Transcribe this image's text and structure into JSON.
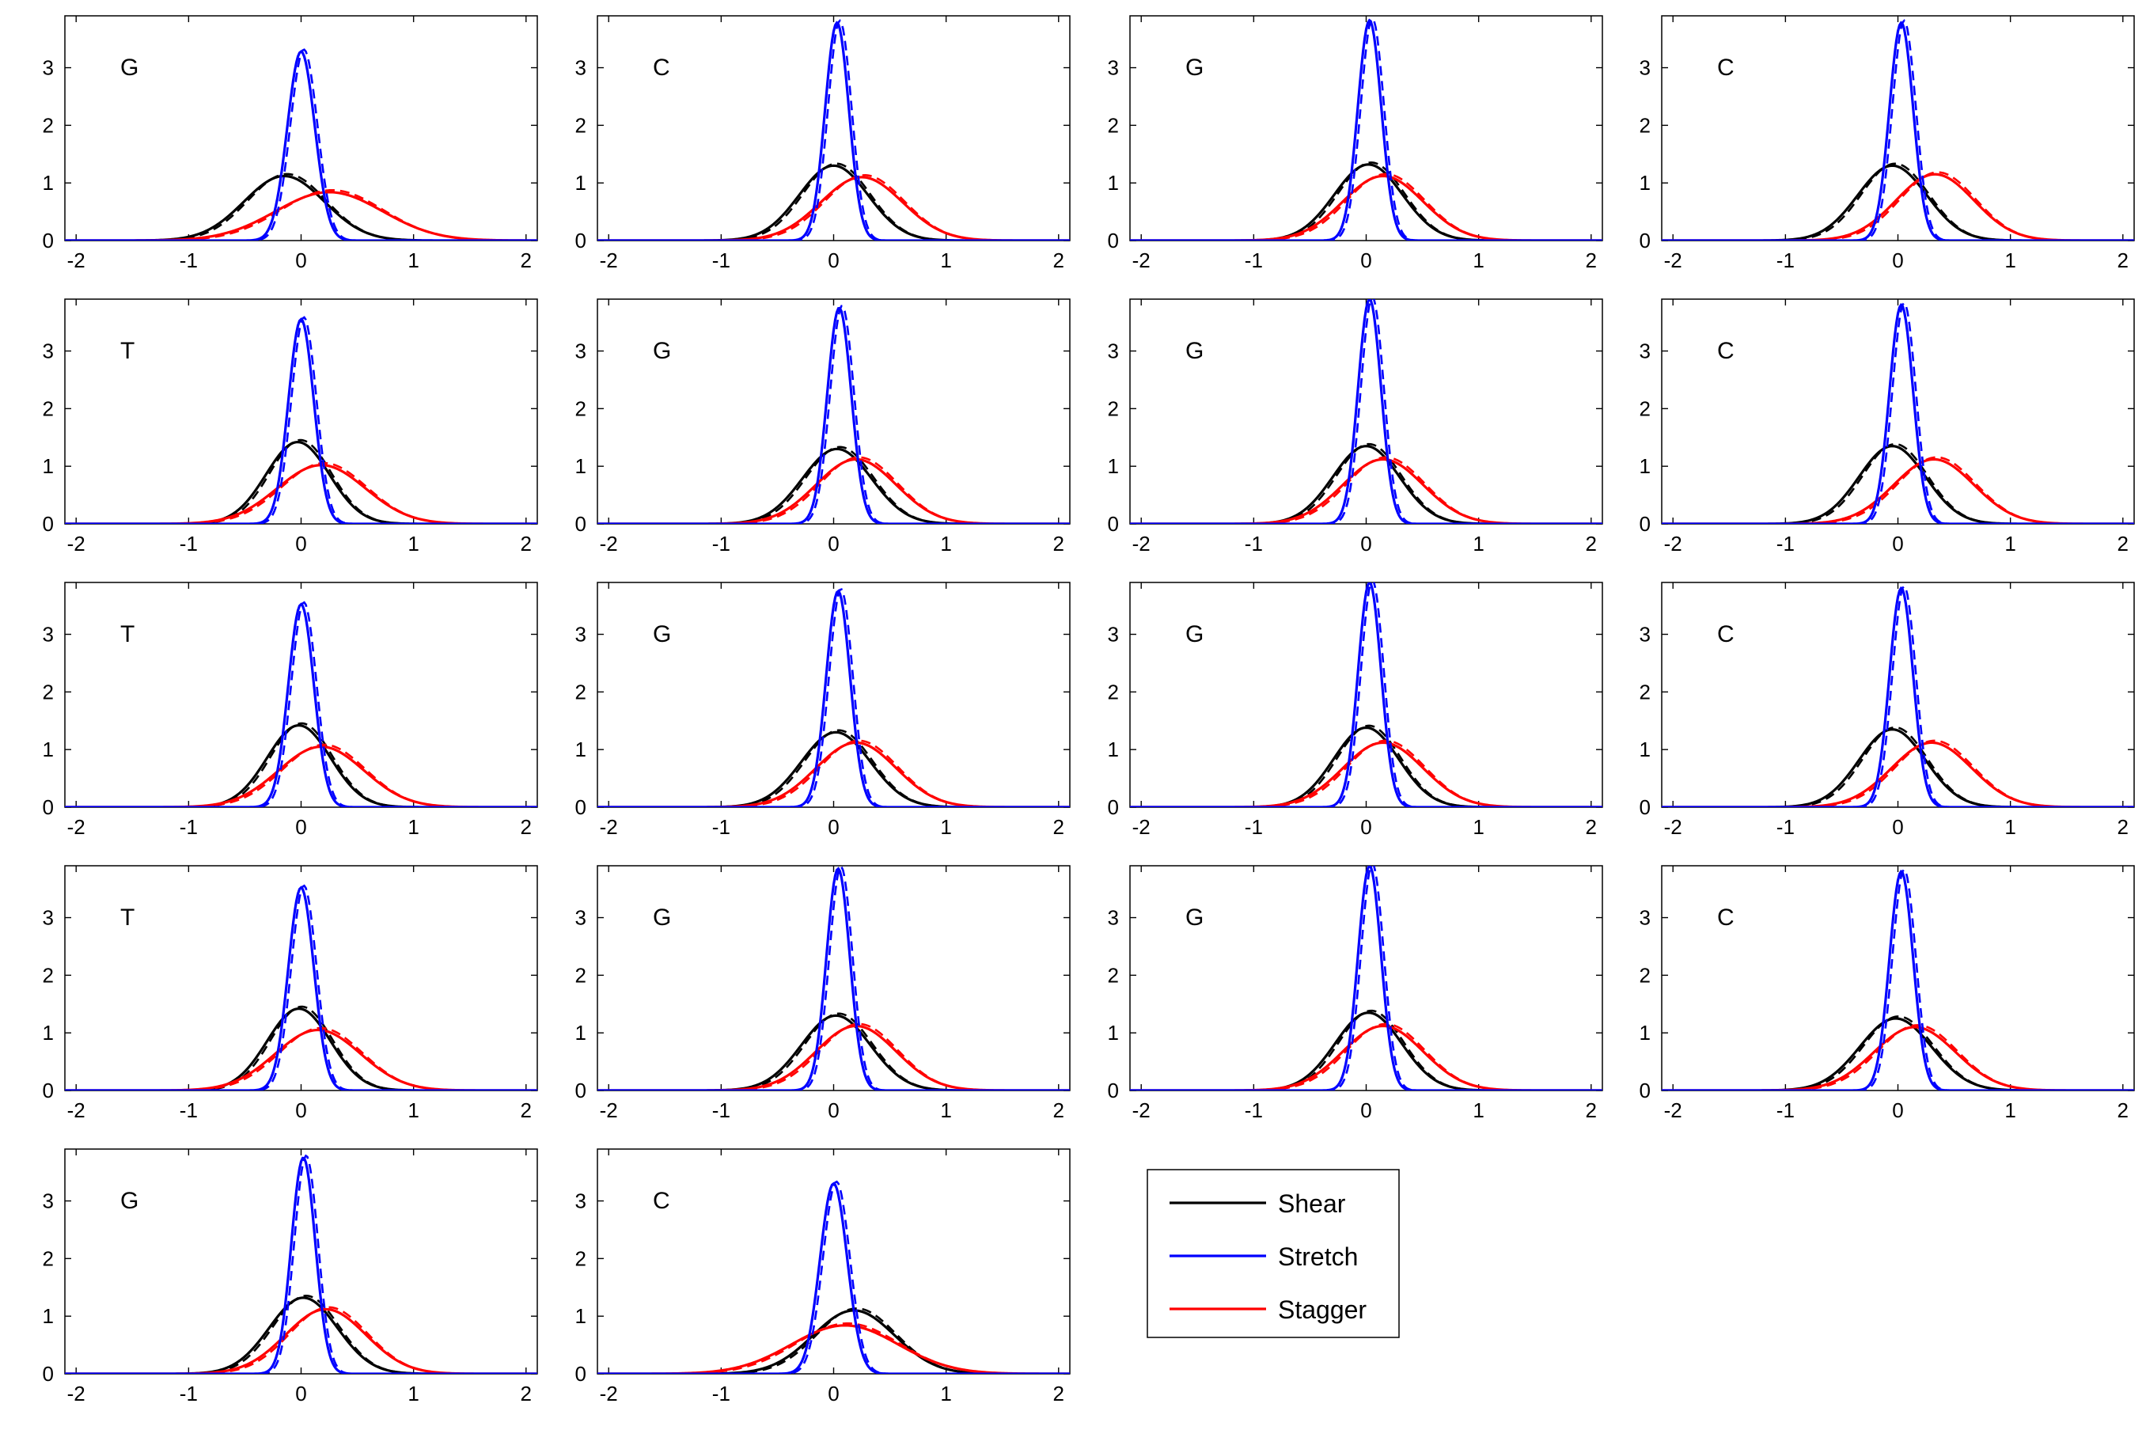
{
  "chart_data": {
    "type": "line",
    "layout": {
      "rows": 5,
      "cols": 4
    },
    "xlim": [
      -2.1,
      2.1
    ],
    "ylim": [
      0,
      3.9
    ],
    "xticks": [
      -2,
      -1,
      0,
      1,
      2
    ],
    "yticks": [
      0,
      1,
      2,
      3
    ],
    "legend": {
      "placement": "row-5-col-3",
      "entries": [
        {
          "label": "Shear",
          "color": "#000000"
        },
        {
          "label": "Stretch",
          "color": "#0000ff"
        },
        {
          "label": "Stagger",
          "color": "#ff0000"
        }
      ]
    },
    "series_styles": {
      "primary": "solid",
      "secondary": "dashed"
    },
    "panels": [
      {
        "label": "G",
        "row": 0,
        "col": 0,
        "curves": {
          "Shear": {
            "mu": -0.15,
            "peak": 1.12
          },
          "Stretch": {
            "mu": 0.0,
            "peak": 3.28
          },
          "Stagger": {
            "mu": 0.25,
            "peak": 0.84
          }
        }
      },
      {
        "label": "C",
        "row": 0,
        "col": 1,
        "curves": {
          "Shear": {
            "mu": 0.0,
            "peak": 1.3
          },
          "Stretch": {
            "mu": 0.03,
            "peak": 3.78
          },
          "Stagger": {
            "mu": 0.25,
            "peak": 1.1
          }
        }
      },
      {
        "label": "G",
        "row": 0,
        "col": 2,
        "curves": {
          "Shear": {
            "mu": 0.02,
            "peak": 1.32
          },
          "Stretch": {
            "mu": 0.03,
            "peak": 3.82
          },
          "Stagger": {
            "mu": 0.15,
            "peak": 1.12
          }
        }
      },
      {
        "label": "C",
        "row": 0,
        "col": 3,
        "curves": {
          "Shear": {
            "mu": -0.05,
            "peak": 1.3
          },
          "Stretch": {
            "mu": 0.03,
            "peak": 3.78
          },
          "Stagger": {
            "mu": 0.33,
            "peak": 1.15
          }
        }
      },
      {
        "label": "T",
        "row": 1,
        "col": 0,
        "curves": {
          "Shear": {
            "mu": -0.03,
            "peak": 1.42
          },
          "Stretch": {
            "mu": 0.0,
            "peak": 3.55
          },
          "Stagger": {
            "mu": 0.18,
            "peak": 1.02
          }
        }
      },
      {
        "label": "G",
        "row": 1,
        "col": 1,
        "curves": {
          "Shear": {
            "mu": 0.03,
            "peak": 1.3
          },
          "Stretch": {
            "mu": 0.05,
            "peak": 3.75
          },
          "Stagger": {
            "mu": 0.2,
            "peak": 1.12
          }
        }
      },
      {
        "label": "G",
        "row": 1,
        "col": 2,
        "curves": {
          "Shear": {
            "mu": 0.0,
            "peak": 1.35
          },
          "Stretch": {
            "mu": 0.03,
            "peak": 3.9
          },
          "Stagger": {
            "mu": 0.15,
            "peak": 1.12
          }
        }
      },
      {
        "label": "C",
        "row": 1,
        "col": 3,
        "curves": {
          "Shear": {
            "mu": -0.05,
            "peak": 1.35
          },
          "Stretch": {
            "mu": 0.03,
            "peak": 3.8
          },
          "Stagger": {
            "mu": 0.32,
            "peak": 1.12
          }
        }
      },
      {
        "label": "T",
        "row": 2,
        "col": 0,
        "curves": {
          "Shear": {
            "mu": -0.02,
            "peak": 1.42
          },
          "Stretch": {
            "mu": 0.0,
            "peak": 3.52
          },
          "Stagger": {
            "mu": 0.18,
            "peak": 1.05
          }
        }
      },
      {
        "label": "G",
        "row": 2,
        "col": 1,
        "curves": {
          "Shear": {
            "mu": 0.02,
            "peak": 1.3
          },
          "Stretch": {
            "mu": 0.04,
            "peak": 3.75
          },
          "Stagger": {
            "mu": 0.2,
            "peak": 1.12
          }
        }
      },
      {
        "label": "G",
        "row": 2,
        "col": 2,
        "curves": {
          "Shear": {
            "mu": 0.0,
            "peak": 1.38
          },
          "Stretch": {
            "mu": 0.03,
            "peak": 3.9
          },
          "Stagger": {
            "mu": 0.15,
            "peak": 1.12
          }
        }
      },
      {
        "label": "C",
        "row": 2,
        "col": 3,
        "curves": {
          "Shear": {
            "mu": -0.05,
            "peak": 1.35
          },
          "Stretch": {
            "mu": 0.03,
            "peak": 3.8
          },
          "Stagger": {
            "mu": 0.3,
            "peak": 1.12
          }
        }
      },
      {
        "label": "T",
        "row": 3,
        "col": 0,
        "curves": {
          "Shear": {
            "mu": -0.02,
            "peak": 1.42
          },
          "Stretch": {
            "mu": 0.0,
            "peak": 3.52
          },
          "Stagger": {
            "mu": 0.15,
            "peak": 1.05
          }
        }
      },
      {
        "label": "G",
        "row": 3,
        "col": 1,
        "curves": {
          "Shear": {
            "mu": 0.02,
            "peak": 1.3
          },
          "Stretch": {
            "mu": 0.04,
            "peak": 3.85
          },
          "Stagger": {
            "mu": 0.2,
            "peak": 1.12
          }
        }
      },
      {
        "label": "G",
        "row": 3,
        "col": 2,
        "curves": {
          "Shear": {
            "mu": 0.02,
            "peak": 1.35
          },
          "Stretch": {
            "mu": 0.03,
            "peak": 3.9
          },
          "Stagger": {
            "mu": 0.15,
            "peak": 1.12
          }
        }
      },
      {
        "label": "C",
        "row": 3,
        "col": 3,
        "curves": {
          "Shear": {
            "mu": -0.02,
            "peak": 1.25
          },
          "Stretch": {
            "mu": 0.03,
            "peak": 3.8
          },
          "Stagger": {
            "mu": 0.15,
            "peak": 1.1
          }
        }
      },
      {
        "label": "G",
        "row": 4,
        "col": 0,
        "curves": {
          "Shear": {
            "mu": 0.02,
            "peak": 1.32
          },
          "Stretch": {
            "mu": 0.02,
            "peak": 3.75
          },
          "Stagger": {
            "mu": 0.22,
            "peak": 1.12
          }
        }
      },
      {
        "label": "C",
        "row": 4,
        "col": 1,
        "curves": {
          "Shear": {
            "mu": 0.18,
            "peak": 1.1
          },
          "Stretch": {
            "mu": 0.0,
            "peak": 3.3
          },
          "Stagger": {
            "mu": 0.1,
            "peak": 0.84
          }
        }
      }
    ]
  }
}
